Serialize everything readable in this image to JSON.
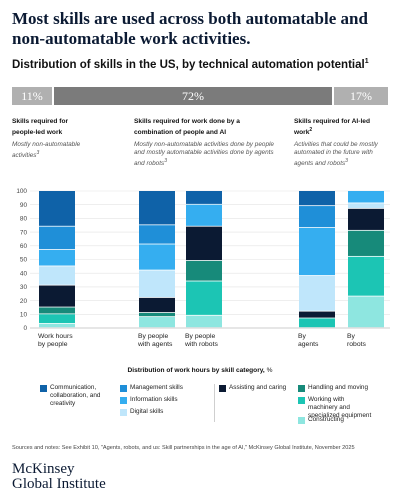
{
  "header": {
    "title": "Most skills are used across both automatable and non-automatable work activities.",
    "subtitle": "Distribution of skills in the US, by technical automation potential",
    "subtitle_note": "1"
  },
  "share_bar": {
    "segments": [
      {
        "label": "11%"
      },
      {
        "label": "72%"
      },
      {
        "label": "17%"
      }
    ]
  },
  "groups": [
    {
      "title": "Skills required for people-led work",
      "title_note": "",
      "desc": "Mostly non-automatable activities",
      "desc_note": "3"
    },
    {
      "title": "Skills required for work done by a combination of people and AI",
      "title_note": "",
      "desc": "Mostly non-automatable activities done by people and mostly automatable activities done by agents and robots",
      "desc_note": "3"
    },
    {
      "title": "Skills required for AI-led work",
      "title_note": "2",
      "desc": "Activities that could be mostly automated in the future with agents and robots",
      "desc_note": "3"
    }
  ],
  "chart_data": {
    "type": "bar",
    "stacked": true,
    "categories": [
      "Work hours by people",
      "By people with agents",
      "By people with robots",
      "By agents",
      "By robots"
    ],
    "yticks": [
      0,
      10,
      20,
      30,
      40,
      50,
      60,
      70,
      80,
      90,
      100
    ],
    "ylim": [
      0,
      100
    ],
    "grid": true,
    "legend_title": "Distribution of work hours by skill category,",
    "legend_unit": "%",
    "series": [
      {
        "name": "Constructing",
        "color": "#8ee6e0",
        "values": [
          3,
          8,
          9,
          0,
          23
        ]
      },
      {
        "name": "Working with machinery and specialized equipment",
        "color": "#1cc5b4",
        "values": [
          7,
          0,
          25,
          7,
          29
        ]
      },
      {
        "name": "Handling and moving",
        "color": "#178a7a",
        "values": [
          5,
          3,
          15,
          0,
          19
        ]
      },
      {
        "name": "Assisting and caring",
        "color": "#0b1a33",
        "values": [
          16,
          11,
          25,
          5,
          16
        ]
      },
      {
        "name": "Digital skills",
        "color": "#bfe6fb",
        "values": [
          14,
          20,
          0,
          26,
          4
        ]
      },
      {
        "name": "Information skills",
        "color": "#35aef0",
        "values": [
          12,
          19,
          16,
          35,
          9
        ]
      },
      {
        "name": "Management skills",
        "color": "#1f8fd8",
        "values": [
          17,
          14,
          0,
          16,
          0
        ]
      },
      {
        "name": "Communication, collaboration, and creativity",
        "color": "#0f62a8",
        "values": [
          26,
          25,
          10,
          11,
          0
        ]
      }
    ]
  },
  "footer": {
    "source": "Sources and notes: See Exhibit 10, \"Agents, robots, and us: Skill partnerships in the age of AI,\" McKinsey Global Institute, November 2025",
    "brand_line1": "McKinsey",
    "brand_line2": "Global Institute"
  }
}
